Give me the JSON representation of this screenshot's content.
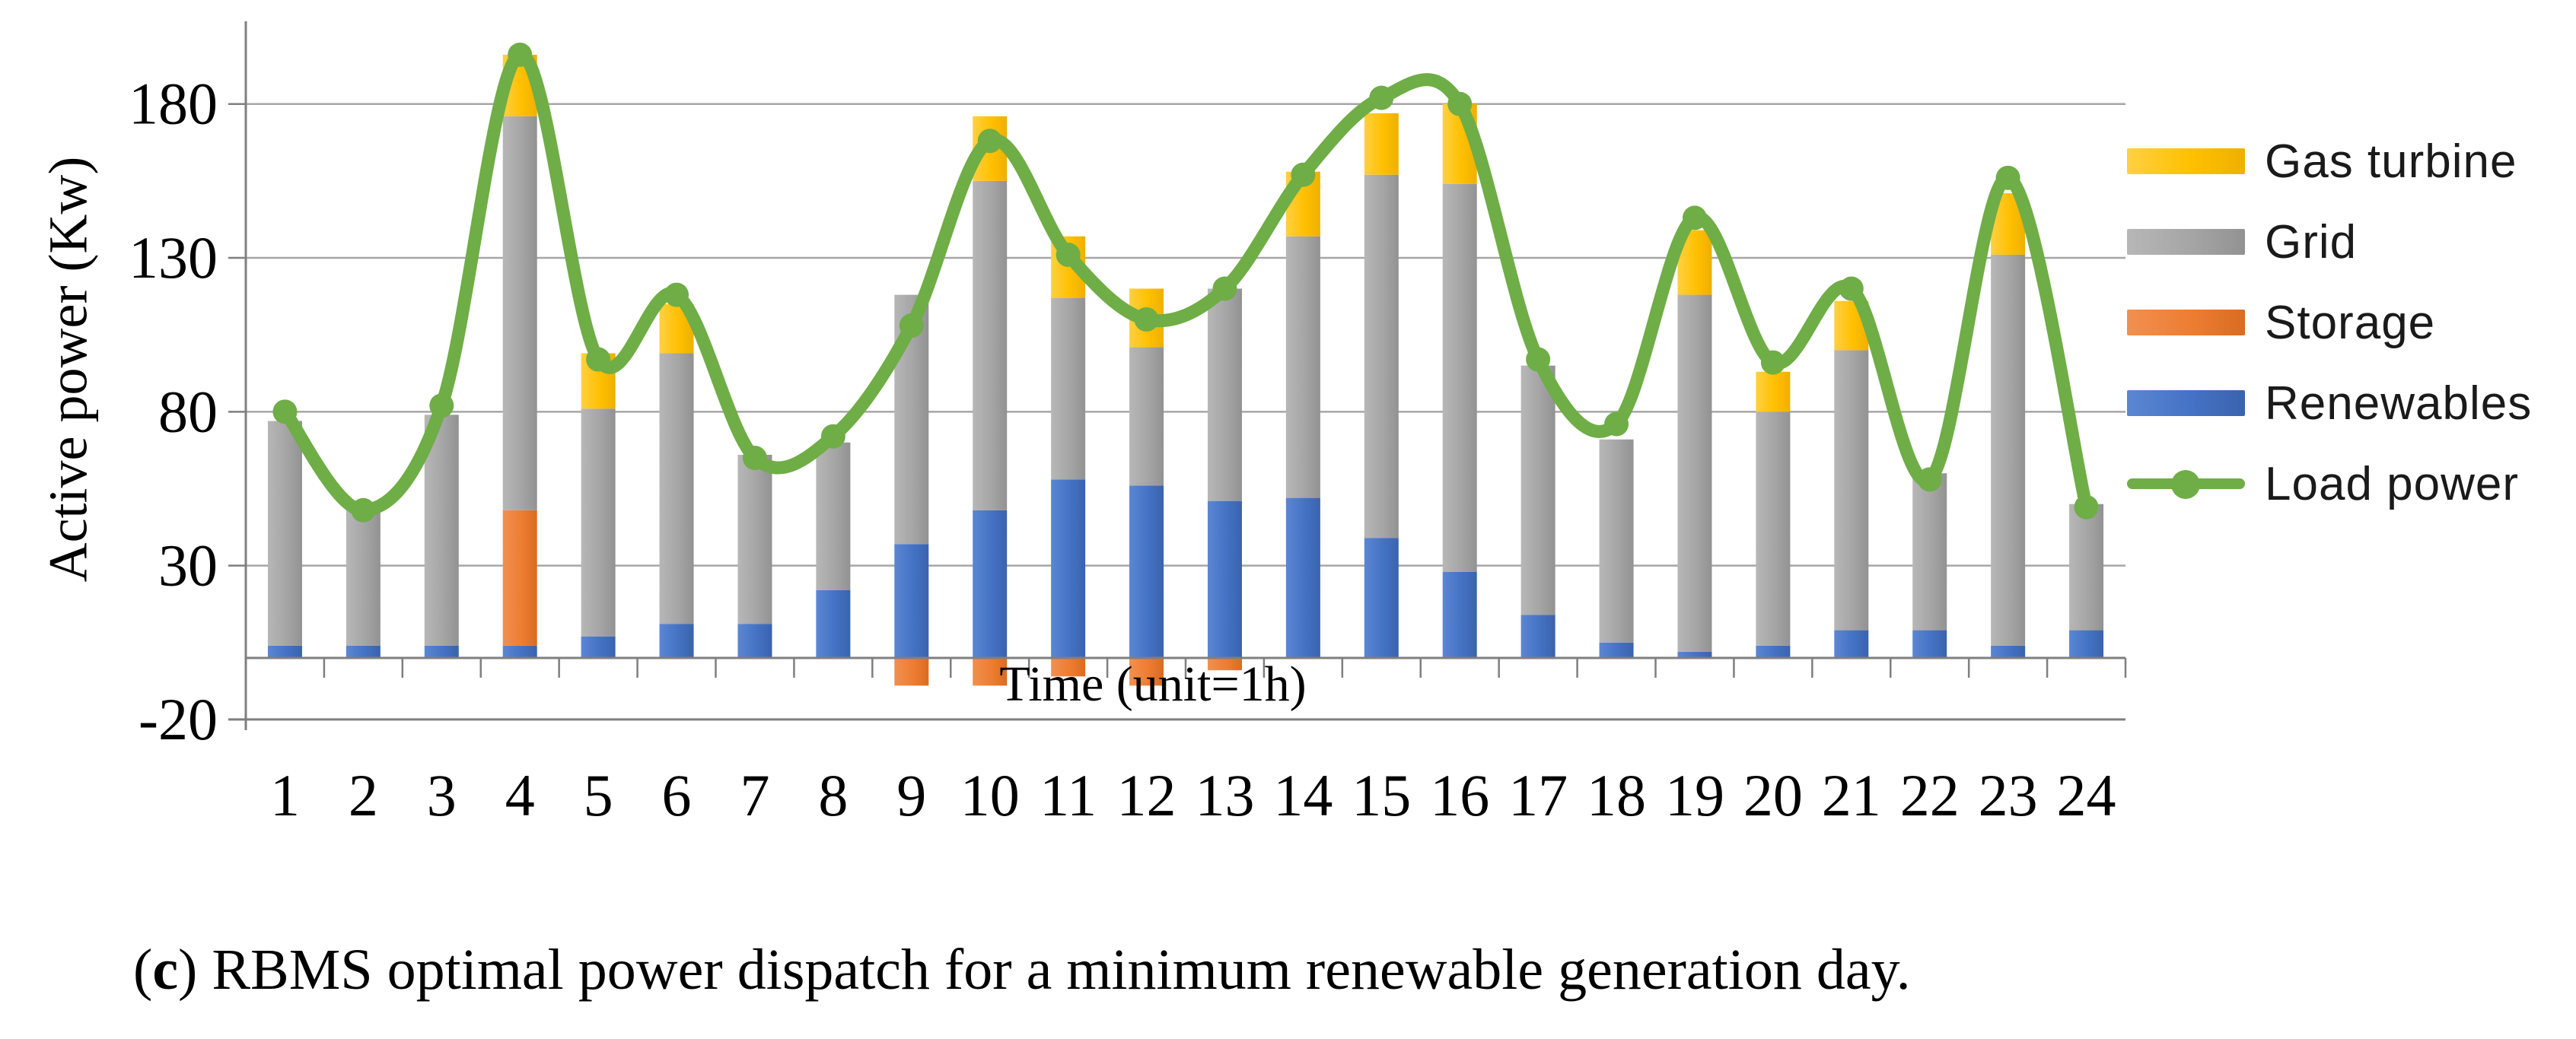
{
  "figure": {
    "caption": {
      "prefix": "(",
      "bold_letter": "c",
      "rest": ") RBMS optimal power dispatch for a minimum renewable generation day."
    }
  },
  "chart_data": {
    "type": "combo-stacked-bar-line",
    "title": "",
    "xlabel": "Time (unit=1h)",
    "ylabel": "Active power (Kw)",
    "categories": [
      1,
      2,
      3,
      4,
      5,
      6,
      7,
      8,
      9,
      10,
      11,
      12,
      13,
      14,
      15,
      16,
      17,
      18,
      19,
      20,
      21,
      22,
      23,
      24
    ],
    "y_ticks": [
      -20,
      30,
      80,
      130,
      180
    ],
    "ylim": [
      -20,
      200
    ],
    "grid": true,
    "legend_position": "right",
    "bar_stack_order_bottom_to_top": [
      "Renewables",
      "Storage",
      "Grid",
      "Gas turbine"
    ],
    "series": [
      {
        "name": "Renewables",
        "type": "bar",
        "color": "#4472C4",
        "light": "#5b86d3",
        "dark": "#3a63ad",
        "values": [
          4,
          4,
          4,
          4,
          7,
          11,
          11,
          22,
          37,
          48,
          58,
          56,
          51,
          52,
          39,
          28,
          14,
          5,
          2,
          4,
          9,
          9,
          4,
          9
        ]
      },
      {
        "name": "Storage",
        "type": "bar",
        "color": "#ED7D31",
        "light": "#f19050",
        "dark": "#d96c22",
        "values": [
          0,
          0,
          0,
          44,
          0,
          0,
          0,
          0,
          -9,
          -9,
          -6,
          -9,
          -4,
          0,
          0,
          0,
          0,
          0,
          0,
          0,
          0,
          0,
          0,
          0
        ]
      },
      {
        "name": "Grid",
        "type": "bar",
        "color": "#A5A5A5",
        "light": "#b7b7b7",
        "dark": "#929292",
        "values": [
          73,
          44,
          75,
          128,
          74,
          88,
          55,
          48,
          81,
          107,
          59,
          45,
          69,
          85,
          118,
          126,
          81,
          66,
          116,
          76,
          91,
          51,
          127,
          41
        ]
      },
      {
        "name": "Gas turbine",
        "type": "bar",
        "color": "#FFC000",
        "light": "#ffd042",
        "dark": "#eeb000",
        "values": [
          0,
          0,
          0,
          20,
          18,
          16,
          0,
          0,
          0,
          21,
          20,
          19,
          0,
          21,
          20,
          26,
          0,
          0,
          21,
          13,
          16,
          0,
          20,
          0
        ]
      },
      {
        "name": "Load power",
        "type": "line",
        "color": "#6FAD46",
        "light": "#7cbb52",
        "dark": "#5f9a3a",
        "values": [
          80,
          48,
          82,
          196,
          97,
          118,
          65,
          72,
          108,
          168,
          131,
          110,
          120,
          157,
          182,
          180,
          97,
          76,
          143,
          96,
          120,
          58,
          156,
          49
        ]
      }
    ],
    "legend_order": [
      "Gas turbine",
      "Grid",
      "Storage",
      "Renewables",
      "Load power"
    ],
    "axis_color": "#7F7F7F",
    "gridline_color": "#A6A6A6"
  }
}
